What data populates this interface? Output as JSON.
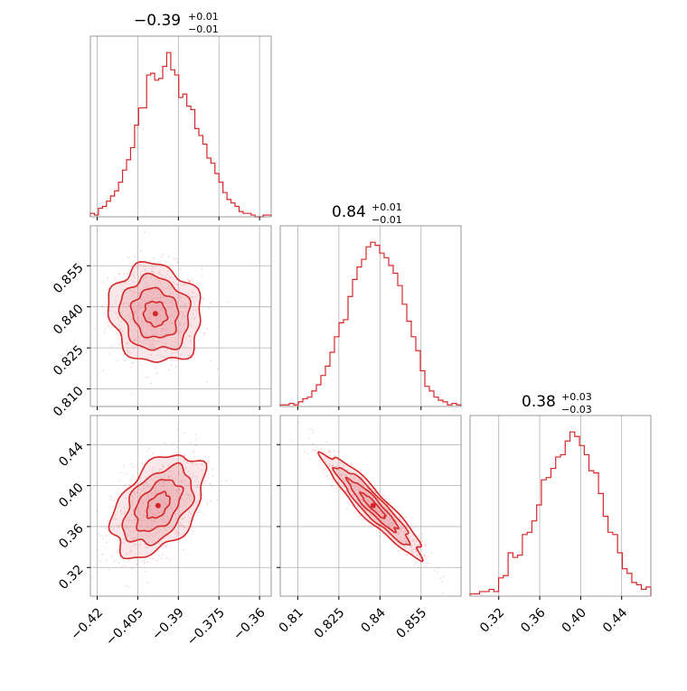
{
  "colors": {
    "accent": "#d62728",
    "fill": "#e9a0a6",
    "grid": "#b0b0b0",
    "frame": "#808080"
  },
  "chart_data": [
    {
      "type": "histogram",
      "panel": "hist-p1",
      "title": {
        "value": "−0.39",
        "upper": "+0.01",
        "lower": "−0.01"
      },
      "xlim": [
        -0.4225,
        -0.3557
      ],
      "xticks": [
        -0.42,
        -0.405,
        -0.39,
        -0.375,
        -0.36
      ],
      "bin_counts": [
        2,
        1,
        5,
        6,
        9,
        12,
        15,
        20,
        27,
        33,
        40,
        53,
        63,
        63,
        82,
        83,
        79,
        80,
        87,
        95,
        85,
        82,
        69,
        71,
        64,
        62,
        51,
        47,
        42,
        34,
        31,
        25,
        20,
        14,
        10,
        8,
        6,
        3,
        2,
        2,
        1,
        0,
        0,
        1,
        1
      ]
    },
    {
      "type": "scatter-contour",
      "panel": "joint-p1-p2",
      "xlim": [
        -0.4225,
        -0.3557
      ],
      "ylim": [
        0.8036,
        0.8696
      ],
      "xticks": [
        -0.42,
        -0.405,
        -0.39,
        -0.375,
        -0.36
      ],
      "yticks": [
        0.81,
        0.825,
        0.84,
        0.855
      ],
      "ytick_labels": [
        "0.810",
        "0.825",
        "0.840",
        "0.855"
      ],
      "center": [
        -0.3985,
        0.8375
      ],
      "sigma": [
        0.0085,
        0.009
      ],
      "correlation": -0.1
    },
    {
      "type": "histogram",
      "panel": "hist-p2",
      "title": {
        "value": "0.84",
        "upper": "+0.01",
        "lower": "−0.01"
      },
      "xlim": [
        0.8036,
        0.8696
      ],
      "xticks": [
        0.81,
        0.825,
        0.84,
        0.855
      ],
      "bin_counts": [
        1,
        1,
        2,
        1,
        3,
        5,
        6,
        10,
        14,
        20,
        26,
        35,
        45,
        54,
        56,
        71,
        82,
        90,
        95,
        103,
        106,
        104,
        99,
        96,
        91,
        86,
        78,
        66,
        55,
        45,
        36,
        23,
        13,
        10,
        6,
        4,
        3,
        1,
        2,
        1
      ]
    },
    {
      "type": "scatter-contour",
      "panel": "joint-p1-p3",
      "xlim": [
        -0.4225,
        -0.3557
      ],
      "ylim": [
        0.292,
        0.4685
      ],
      "xticks": [
        -0.42,
        -0.405,
        -0.39,
        -0.375,
        -0.36
      ],
      "yticks": [
        0.32,
        0.36,
        0.4,
        0.44
      ],
      "ytick_labels": [
        "0.32",
        "0.36",
        "0.40",
        "0.44"
      ],
      "center": [
        -0.3975,
        0.3805
      ],
      "sigma": [
        0.0085,
        0.025
      ],
      "correlation": 0.45
    },
    {
      "type": "scatter-contour",
      "panel": "joint-p2-p3",
      "xlim": [
        0.8036,
        0.8696
      ],
      "ylim": [
        0.292,
        0.4685
      ],
      "xticks": [
        0.81,
        0.825,
        0.84,
        0.855
      ],
      "yticks": [
        0.32,
        0.36,
        0.4,
        0.44
      ],
      "center": [
        0.8375,
        0.3805
      ],
      "sigma": [
        0.009,
        0.025
      ],
      "correlation": -0.93
    },
    {
      "type": "histogram",
      "panel": "hist-p3",
      "title": {
        "value": "0.38",
        "upper": "+0.03",
        "lower": "−0.03"
      },
      "xlim": [
        0.292,
        0.4685
      ],
      "xticks": [
        0.32,
        0.36,
        0.4,
        0.44
      ],
      "xtick_labels": [
        "0.32",
        "0.36",
        "0.40",
        "0.44"
      ],
      "bin_counts": [
        1,
        1,
        2,
        2,
        3,
        2,
        8,
        9,
        19,
        17,
        18,
        27,
        28,
        33,
        40,
        51,
        52,
        56,
        61,
        62,
        68,
        72,
        70,
        66,
        62,
        55,
        54,
        45,
        35,
        28,
        27,
        19,
        12,
        10,
        6,
        5,
        3,
        4
      ]
    }
  ]
}
